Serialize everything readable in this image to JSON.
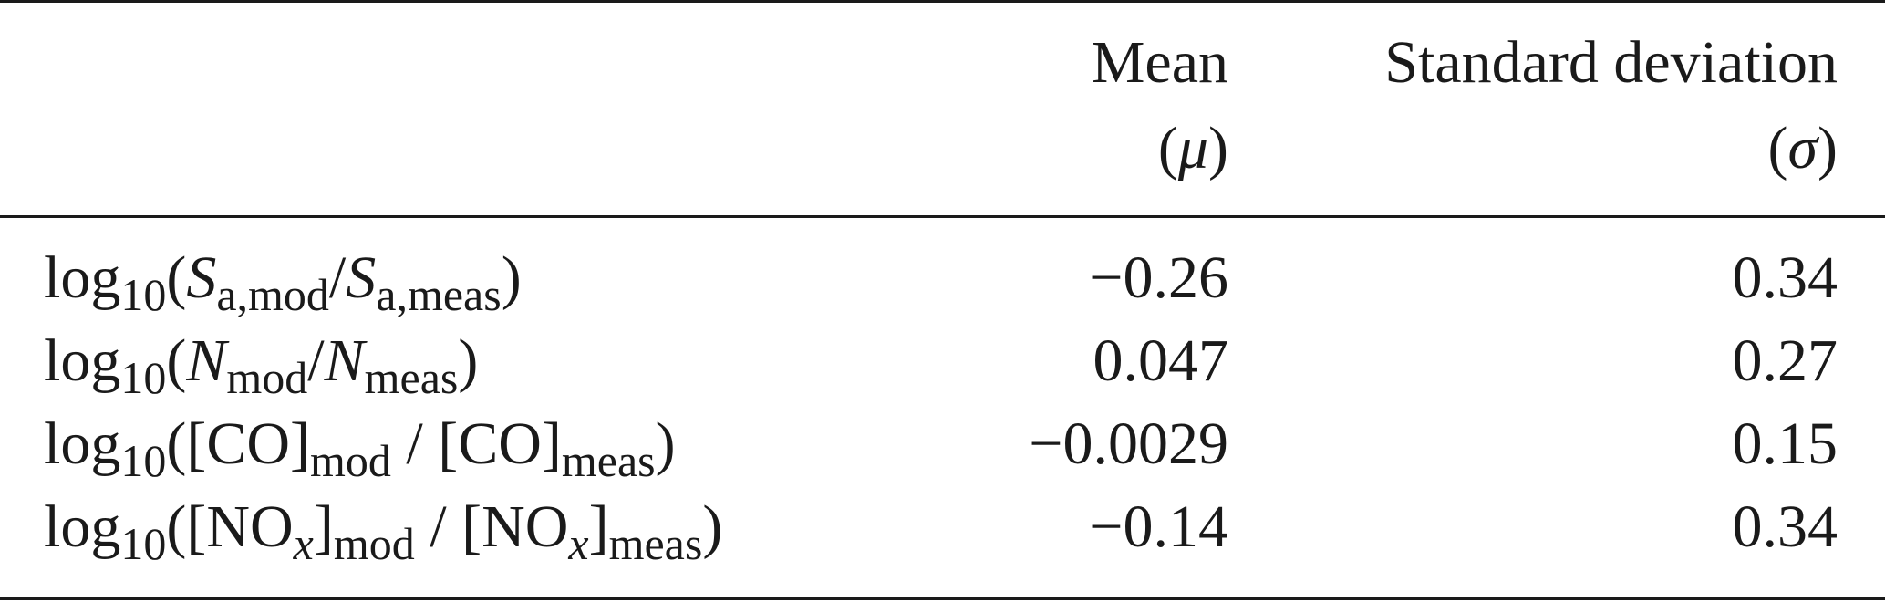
{
  "table": {
    "columns": [
      {
        "line1": "Mean",
        "line2_symbol": "μ"
      },
      {
        "line1": "Standard deviation",
        "line2_symbol": "σ"
      }
    ],
    "rows": [
      {
        "label": {
          "prefix": "log",
          "base": "10",
          "num_var": "S",
          "num_sub": "a,mod",
          "den_var": "S",
          "den_sub": "a,meas"
        },
        "mean": "−0.26",
        "sd": "0.34"
      },
      {
        "label": {
          "prefix": "log",
          "base": "10",
          "num_var": "N",
          "num_sub": "mod",
          "den_var": "N",
          "den_sub": "meas"
        },
        "mean": "0.047",
        "sd": "0.27"
      },
      {
        "label": {
          "prefix": "log",
          "base": "10",
          "num_species": "CO",
          "num_sub": "mod",
          "den_species": "CO",
          "den_sub": "meas"
        },
        "mean": "−0.0029",
        "sd": "0.15"
      },
      {
        "label": {
          "prefix": "log",
          "base": "10",
          "num_species": "NO",
          "num_species_sub": "x",
          "num_sub": "mod",
          "den_species": "NO",
          "den_species_sub": "x",
          "den_sub": "meas"
        },
        "mean": "−0.14",
        "sd": "0.34"
      }
    ]
  }
}
